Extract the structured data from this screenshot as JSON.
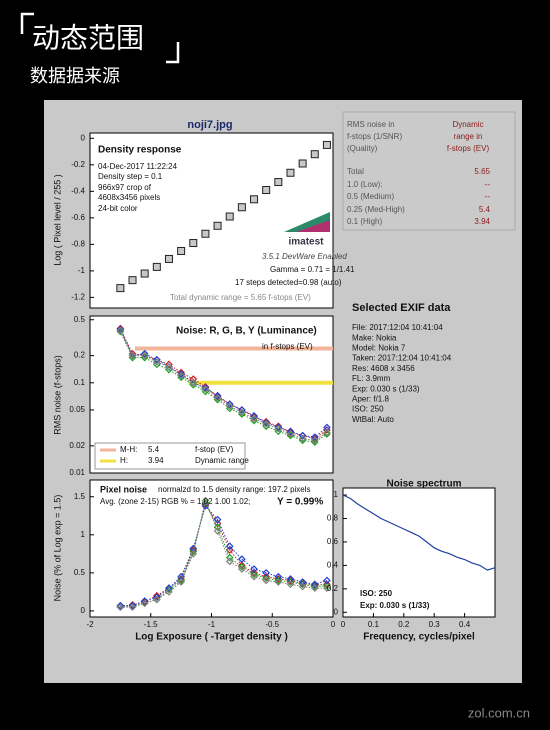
{
  "header": {
    "title": "动态范围",
    "subtitle": "数据据来源"
  },
  "source": "noji7.jpg",
  "watermark": "zol.com.cn",
  "dr_table": {
    "headers": [
      [
        "RMS noise in",
        "f-stops (1/SNR)",
        "(Quality)"
      ],
      [
        "Dynamic",
        "range in",
        "f-stops (EV)"
      ]
    ],
    "rows": [
      [
        "Total",
        "5.65"
      ],
      [
        "1.0  (Low):",
        "--"
      ],
      [
        "0.5  (Medium)",
        "--"
      ],
      [
        "0.25 (Med-High)",
        "5.4"
      ],
      [
        "0.1  (High)",
        "3.94"
      ]
    ]
  },
  "exif": {
    "title": "Selected EXIF data",
    "lines": [
      "File:  2017:12:04 10:41:04",
      "Make:  Nokia",
      "Model: Nokia 7",
      "Taken: 2017:12:04 10:41:04",
      "Res:    4608 x 3456",
      "FL:    3.9mm",
      "Exp:   0.030 s  (1/33)",
      "Aper:  f/1.8",
      "ISO:    250",
      "WtBal: Auto"
    ]
  },
  "chart_data": [
    {
      "type": "scatter",
      "marker": "square",
      "title": "Density response",
      "info": [
        "04-Dec-2017 11:22:24",
        "Density step = 0.1",
        "966x97 crop of",
        "4608x3456 pixels",
        "24-bit color"
      ],
      "logo": "imatest",
      "version": "3.5.1  DevWare Enabled",
      "notes": [
        "Gamma = 0.71 = 1/1.41",
        "17 steps detected=0.98 (auto)",
        "Total dynamic range = 5.65 f-stops (EV)"
      ],
      "ylabel": "Log ( Pixel level / 255 )",
      "xlim": [
        -2,
        0
      ],
      "ylim": [
        -1.28,
        0.04
      ],
      "yticks": [
        0,
        -0.2,
        -0.4,
        -0.6,
        -0.8,
        -1,
        -1.2
      ],
      "x": [
        -1.75,
        -1.65,
        -1.55,
        -1.45,
        -1.35,
        -1.25,
        -1.15,
        -1.05,
        -0.95,
        -0.85,
        -0.75,
        -0.65,
        -0.55,
        -0.45,
        -0.35,
        -0.25,
        -0.15,
        -0.05
      ],
      "series": [
        {
          "color": "#222222",
          "values": [
            -1.13,
            -1.07,
            -1.02,
            -0.97,
            -0.91,
            -0.85,
            -0.79,
            -0.72,
            -0.66,
            -0.59,
            -0.52,
            -0.46,
            -0.39,
            -0.33,
            -0.26,
            -0.19,
            -0.12,
            -0.05
          ]
        }
      ]
    },
    {
      "type": "scatter",
      "marker": "diamond",
      "connect": true,
      "log": true,
      "title": "Noise: R, G, B, Y (Luminance)",
      "annotation": "in f-stops (EV)",
      "legend_notes": [
        "f-stop (EV)",
        "Dynamic range"
      ],
      "ylabel": "RMS noise (f-stops)",
      "xlim": [
        -2,
        0
      ],
      "ylim": [
        0.01,
        0.55
      ],
      "yticks": [
        0.5,
        0.2,
        0.1,
        0.05,
        0.02,
        0.01
      ],
      "bands": [
        {
          "name": "M-H:",
          "label": "5.4",
          "x": [
            -1.63,
            0
          ],
          "y": 0.24,
          "color": "#f2b49a"
        },
        {
          "name": "H:",
          "label": "3.94",
          "x": [
            -1.19,
            0
          ],
          "y": 0.1,
          "color": "#f0e040"
        }
      ],
      "x": [
        -1.75,
        -1.65,
        -1.55,
        -1.45,
        -1.35,
        -1.25,
        -1.15,
        -1.05,
        -0.95,
        -0.85,
        -0.75,
        -0.65,
        -0.55,
        -0.45,
        -0.35,
        -0.25,
        -0.15,
        -0.05
      ],
      "series": [
        {
          "color": "#d02020",
          "values": [
            0.4,
            0.21,
            0.2,
            0.18,
            0.16,
            0.13,
            0.11,
            0.09,
            0.07,
            0.058,
            0.05,
            0.042,
            0.037,
            0.033,
            0.028,
            0.026,
            0.024,
            0.03
          ]
        },
        {
          "color": "#20a020",
          "values": [
            0.37,
            0.19,
            0.19,
            0.16,
            0.14,
            0.115,
            0.095,
            0.08,
            0.065,
            0.052,
            0.045,
            0.038,
            0.033,
            0.029,
            0.026,
            0.023,
            0.022,
            0.027
          ]
        },
        {
          "color": "#2040d0",
          "values": [
            0.39,
            0.2,
            0.21,
            0.18,
            0.15,
            0.125,
            0.1,
            0.088,
            0.072,
            0.058,
            0.05,
            0.043,
            0.036,
            0.032,
            0.029,
            0.026,
            0.025,
            0.032
          ]
        },
        {
          "color": "#808080",
          "values": [
            0.38,
            0.2,
            0.2,
            0.17,
            0.15,
            0.12,
            0.1,
            0.085,
            0.068,
            0.055,
            0.047,
            0.04,
            0.035,
            0.031,
            0.027,
            0.024,
            0.023,
            0.028
          ]
        }
      ]
    },
    {
      "type": "scatter",
      "marker": "diamond",
      "connect": true,
      "title": "Pixel noise",
      "info": [
        "normalzd to 1.5 density range: 197.2 pixels",
        "Avg. (zone 2-15) RGB % = 1.02  1.00  1.02;"
      ],
      "highlight": "Y = 0.99%",
      "ylabel": "Noise (% of Log exp = 1.5)",
      "xlabel": "Log Exposure ( -Target density )",
      "xlim": [
        -2,
        0
      ],
      "xticks": [
        -2,
        -1.5,
        -1,
        -0.5,
        0
      ],
      "ylim": [
        -0.08,
        1.72
      ],
      "yticks": [
        0,
        0.5,
        1,
        1.5
      ],
      "x": [
        -1.75,
        -1.65,
        -1.55,
        -1.45,
        -1.35,
        -1.25,
        -1.15,
        -1.05,
        -0.95,
        -0.85,
        -0.75,
        -0.65,
        -0.55,
        -0.45,
        -0.35,
        -0.25,
        -0.15,
        -0.05
      ],
      "series": [
        {
          "color": "#d02020",
          "values": [
            0.06,
            0.08,
            0.12,
            0.2,
            0.3,
            0.42,
            0.8,
            1.4,
            1.15,
            0.8,
            0.6,
            0.5,
            0.45,
            0.42,
            0.4,
            0.36,
            0.34,
            0.35
          ]
        },
        {
          "color": "#20a020",
          "values": [
            0.05,
            0.06,
            0.1,
            0.15,
            0.28,
            0.4,
            0.78,
            1.42,
            1.1,
            0.7,
            0.58,
            0.48,
            0.43,
            0.4,
            0.38,
            0.35,
            0.32,
            0.33
          ]
        },
        {
          "color": "#2040d0",
          "values": [
            0.07,
            0.07,
            0.13,
            0.18,
            0.3,
            0.45,
            0.82,
            1.38,
            1.2,
            0.85,
            0.68,
            0.55,
            0.5,
            0.45,
            0.42,
            0.38,
            0.35,
            0.4
          ]
        },
        {
          "color": "#808080",
          "values": [
            0.05,
            0.05,
            0.1,
            0.15,
            0.25,
            0.38,
            0.75,
            1.45,
            1.05,
            0.65,
            0.55,
            0.45,
            0.4,
            0.38,
            0.35,
            0.32,
            0.3,
            0.3
          ]
        }
      ]
    },
    {
      "type": "line",
      "title": "Noise spectrum",
      "xlabel": "Frequency, cycles/pixel",
      "notes": [
        "ISO:   250",
        "Exp:   0.030 s   (1/33)"
      ],
      "xlim": [
        0,
        0.5
      ],
      "xticks": [
        0,
        0.1,
        0.2,
        0.3,
        0.4
      ],
      "ylim": [
        -0.04,
        1.06
      ],
      "yticks": [
        0,
        0.2,
        0.4,
        0.6,
        0.8,
        1
      ],
      "x": [
        0,
        0.025,
        0.05,
        0.075,
        0.1,
        0.125,
        0.15,
        0.175,
        0.2,
        0.225,
        0.25,
        0.275,
        0.3,
        0.325,
        0.35,
        0.375,
        0.4,
        0.425,
        0.45,
        0.475,
        0.5
      ],
      "series": [
        {
          "color": "#1f3f9f",
          "values": [
            1,
            0.97,
            0.92,
            0.88,
            0.84,
            0.8,
            0.77,
            0.74,
            0.71,
            0.68,
            0.65,
            0.6,
            0.55,
            0.52,
            0.5,
            0.47,
            0.45,
            0.42,
            0.4,
            0.36,
            0.38
          ]
        }
      ]
    }
  ]
}
